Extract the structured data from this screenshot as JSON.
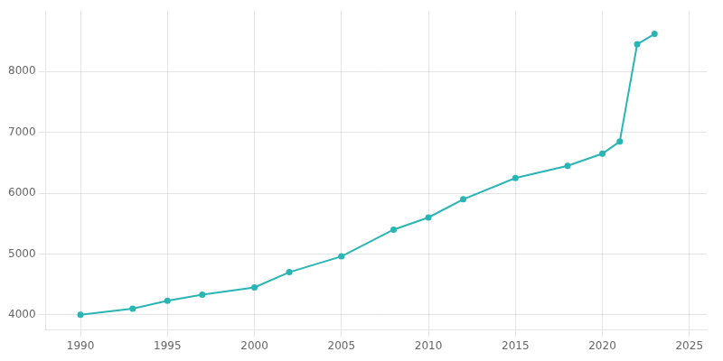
{
  "chart_data": {
    "type": "line",
    "x": [
      1990,
      1993,
      1995,
      1997,
      2000,
      2002,
      2005,
      2008,
      2010,
      2012,
      2015,
      2018,
      2020,
      2021,
      2022,
      2023
    ],
    "values": [
      4000,
      4100,
      4230,
      4330,
      4450,
      4700,
      4960,
      5400,
      5600,
      5900,
      6250,
      6450,
      6650,
      6850,
      8450,
      8620
    ],
    "color": "#2ab5b5",
    "marker": "circle",
    "xlim": [
      1988,
      2026
    ],
    "xticks": [
      1990,
      1995,
      2000,
      2005,
      2010,
      2015,
      2020,
      2025
    ],
    "ylim": [
      3750,
      9000
    ],
    "yticks": [
      4000,
      5000,
      6000,
      7000,
      8000
    ],
    "grid": true
  }
}
